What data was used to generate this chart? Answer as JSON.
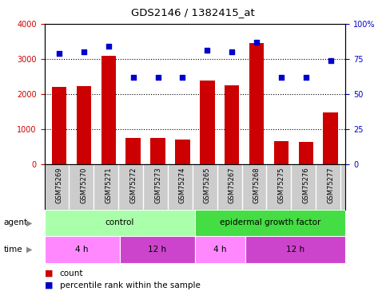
{
  "title": "GDS2146 / 1382415_at",
  "samples": [
    "GSM75269",
    "GSM75270",
    "GSM75271",
    "GSM75272",
    "GSM75273",
    "GSM75274",
    "GSM75265",
    "GSM75267",
    "GSM75268",
    "GSM75275",
    "GSM75276",
    "GSM75277"
  ],
  "counts": [
    2200,
    2230,
    3100,
    760,
    760,
    720,
    2380,
    2250,
    3450,
    670,
    650,
    1480
  ],
  "percentile_ranks": [
    79,
    80,
    84,
    62,
    62,
    62,
    81,
    80,
    87,
    62,
    62,
    74
  ],
  "bar_color": "#cc0000",
  "dot_color": "#0000cc",
  "ylim_left": [
    0,
    4000
  ],
  "ylim_right": [
    0,
    100
  ],
  "yticks_left": [
    0,
    1000,
    2000,
    3000,
    4000
  ],
  "ytick_labels_left": [
    "0",
    "1000",
    "2000",
    "3000",
    "4000"
  ],
  "ytick_labels_right": [
    "0",
    "25",
    "50",
    "75",
    "100%"
  ],
  "grid_values": [
    1000,
    2000,
    3000
  ],
  "agent_groups": [
    {
      "label": "control",
      "start": 0,
      "end": 6,
      "color": "#aaffaa"
    },
    {
      "label": "epidermal growth factor",
      "start": 6,
      "end": 12,
      "color": "#44dd44"
    }
  ],
  "time_groups": [
    {
      "label": "4 h",
      "start": 0,
      "end": 3,
      "color": "#ff88ff"
    },
    {
      "label": "12 h",
      "start": 3,
      "end": 6,
      "color": "#cc44cc"
    },
    {
      "label": "4 h",
      "start": 6,
      "end": 8,
      "color": "#ff88ff"
    },
    {
      "label": "12 h",
      "start": 8,
      "end": 12,
      "color": "#cc44cc"
    }
  ],
  "plot_bg_color": "#ffffff",
  "sample_bg_color": "#cccccc",
  "legend_count_color": "#cc0000",
  "legend_dot_color": "#0000cc"
}
